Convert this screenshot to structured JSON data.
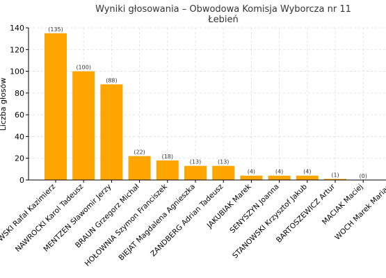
{
  "chart_data": {
    "type": "bar",
    "title": "Wyniki głosowania – Obwodowa Komisja Wyborcza nr 11",
    "subtitle": "Łebień",
    "xlabel": "",
    "ylabel": "Liczba głosów",
    "ylim": [
      0,
      140
    ],
    "yticks": [
      0,
      20,
      40,
      60,
      80,
      100,
      120,
      140
    ],
    "grid": true,
    "bar_color": "#FFA500",
    "categories": [
      "TRZASKOWSKI Rafał Kazimierz",
      "NAWROCKI Karol Tadeusz",
      "MENTZEN Sławomir Jerzy",
      "BRAUN Grzegorz Michał",
      "HOŁOWNIA Szymon Franciszek",
      "BIEJAT Magdalena Agnieszka",
      "ZANDBERG Adrian Tadeusz",
      "JAKUBIAK Marek",
      "SENYSZYN Joanna",
      "STANOWSKI Krzysztof Jakub",
      "BARTOSZEWICZ Artur",
      "MACIAK Maciej",
      "WOCH Marek Marian"
    ],
    "values": [
      135,
      100,
      88,
      22,
      18,
      13,
      13,
      4,
      4,
      4,
      1,
      0,
      0
    ],
    "data_labels": [
      "(135)",
      "(100)",
      "(88)",
      "(22)",
      "(18)",
      "(13)",
      "(13)",
      "(4)",
      "(4)",
      "(4)",
      "(1)",
      "(0)",
      "(0)"
    ]
  }
}
